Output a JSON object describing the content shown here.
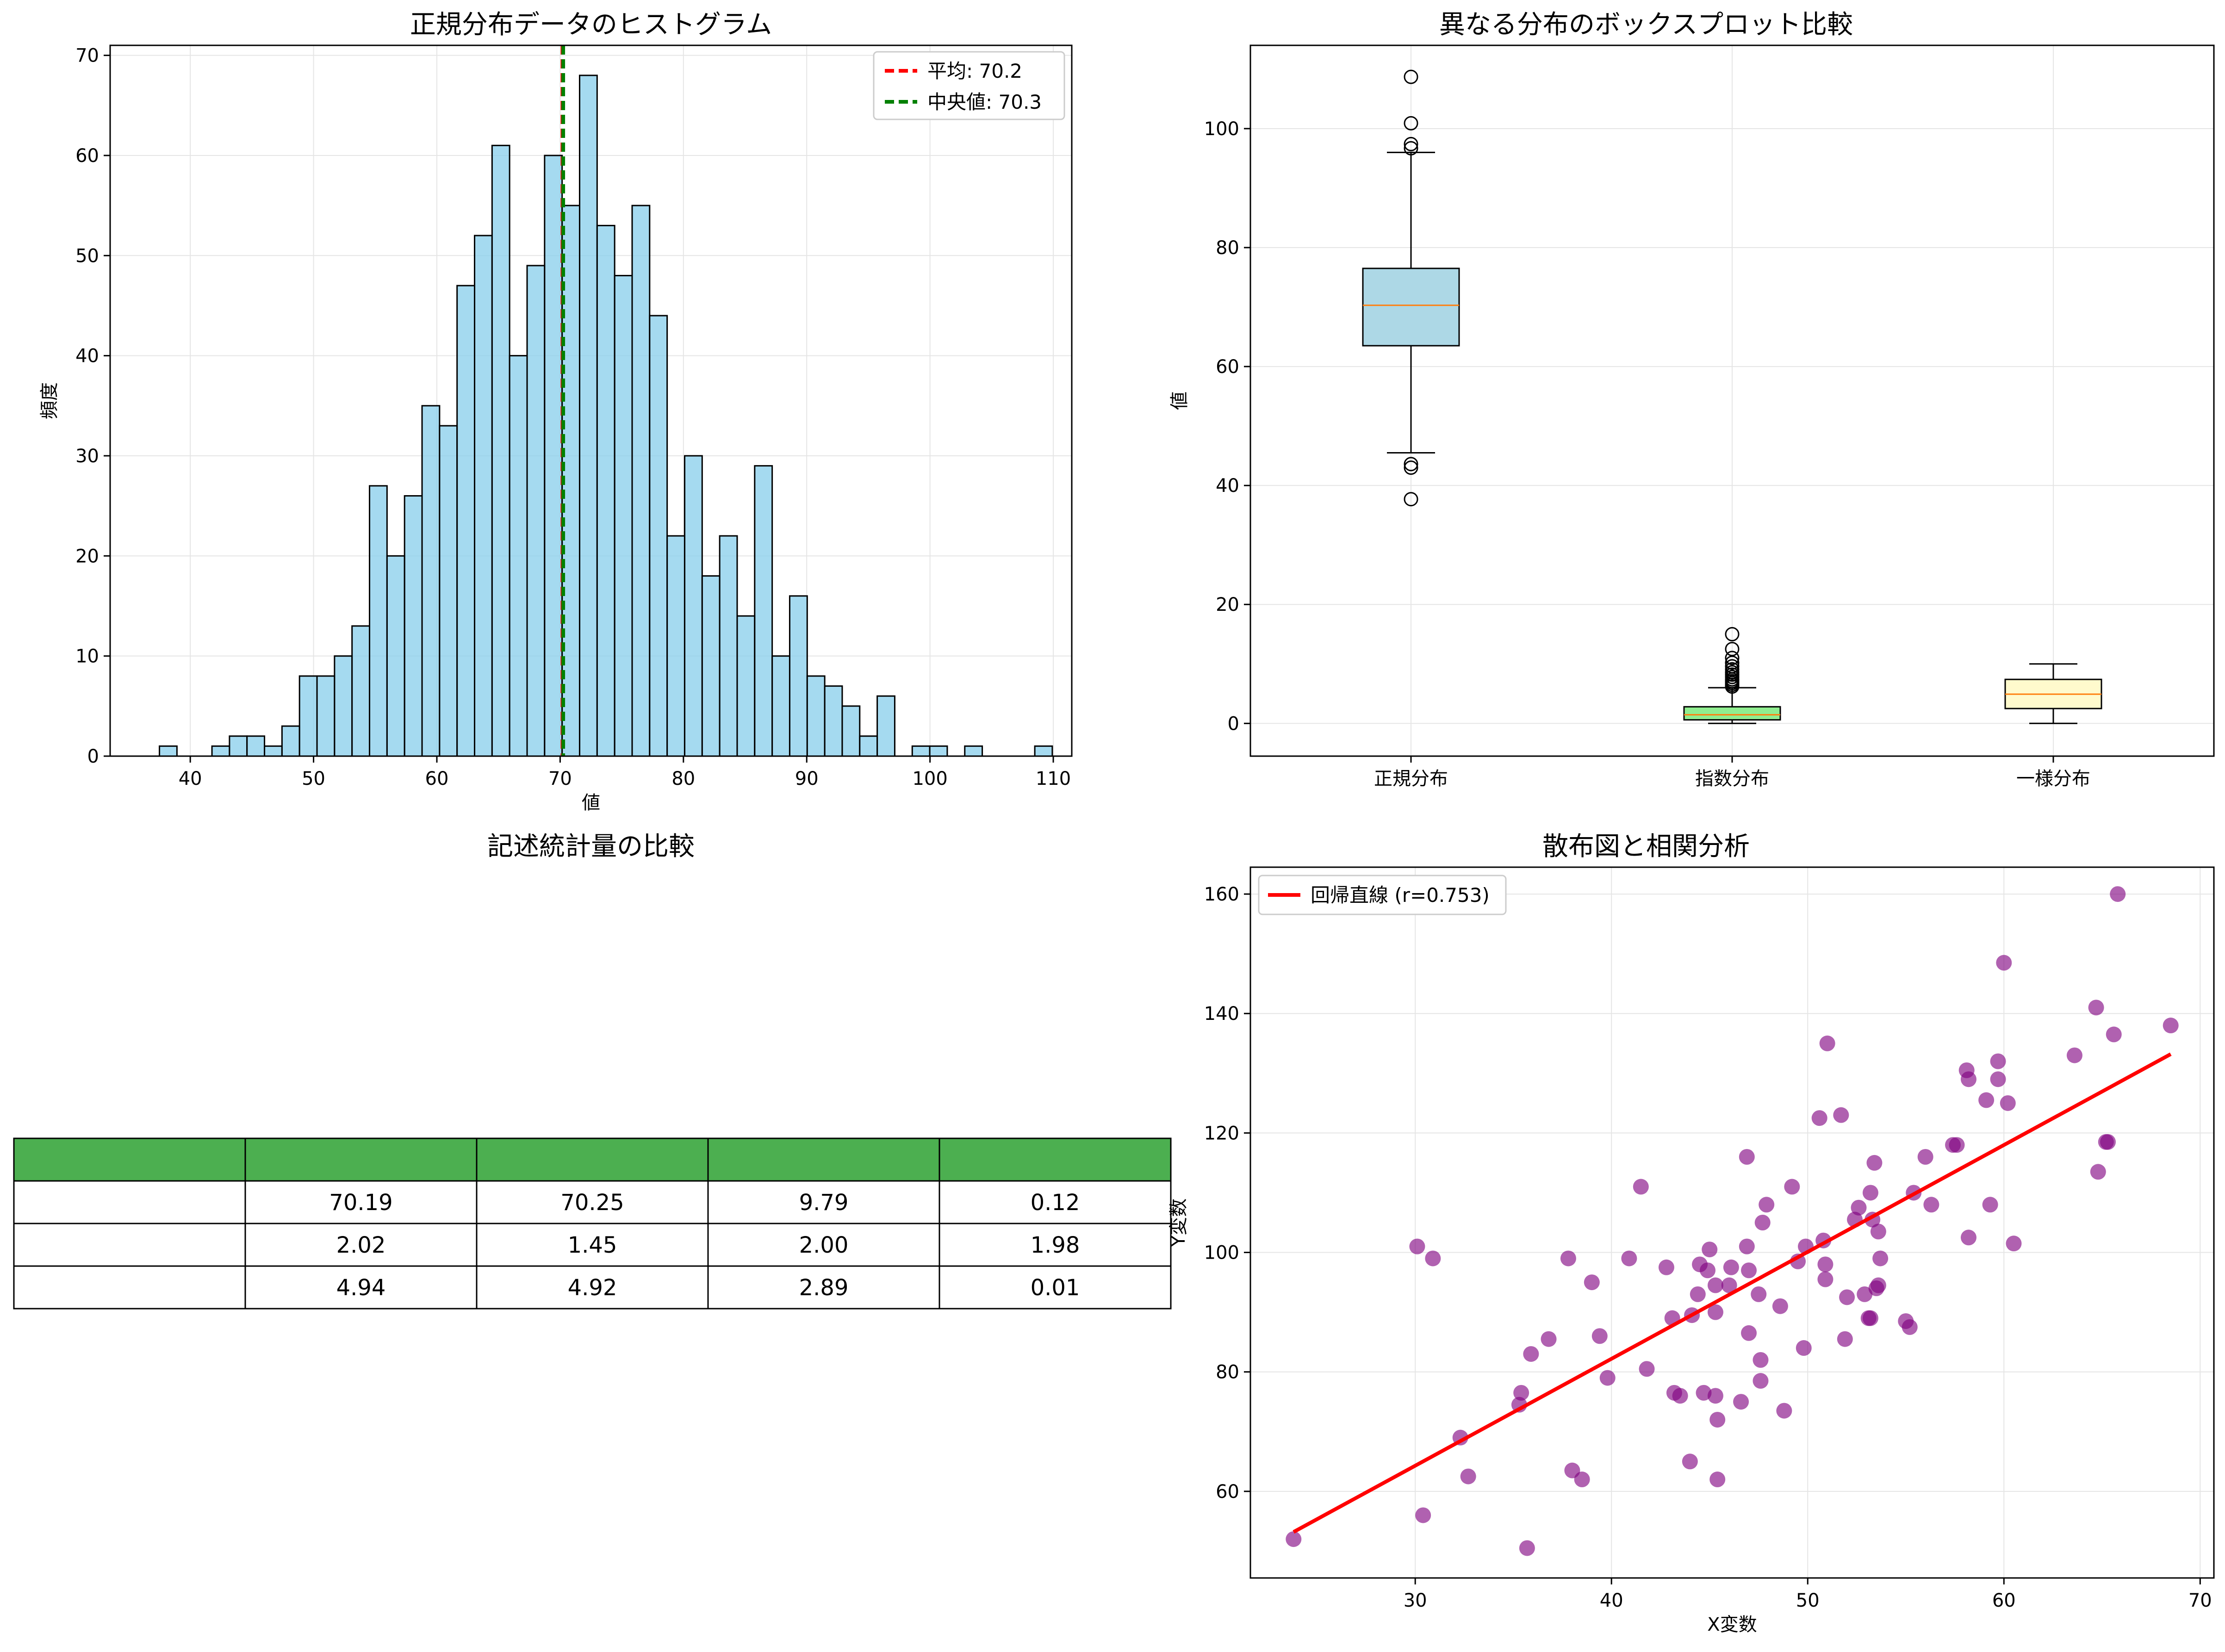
{
  "charts": [
    {
      "id": "hist",
      "title": "正規分布データのヒストグラム",
      "xlabel": "値",
      "ylabel": "頻度",
      "chart_data": {
        "type": "bar",
        "bin_start": 37.5,
        "bin_width": 1.42,
        "counts": [
          1,
          0,
          0,
          1,
          2,
          2,
          1,
          3,
          8,
          8,
          10,
          13,
          27,
          20,
          26,
          35,
          33,
          47,
          52,
          61,
          40,
          49,
          60,
          55,
          68,
          53,
          48,
          55,
          44,
          22,
          30,
          18,
          22,
          14,
          29,
          10,
          16,
          8,
          7,
          5,
          2,
          6,
          0,
          1,
          1,
          0,
          1,
          0,
          0,
          0,
          1
        ],
        "xlim": [
          33.5,
          111.5
        ],
        "ylim": [
          0,
          71
        ],
        "xticks": [
          40,
          50,
          60,
          70,
          80,
          90,
          100,
          110
        ],
        "yticks": [
          0,
          10,
          20,
          30,
          40,
          50,
          60,
          70
        ],
        "lines": [
          {
            "label": "平均: 70.2",
            "x": 70.19,
            "color": "#ff0000"
          },
          {
            "label": "中央値: 70.3",
            "x": 70.25,
            "color": "#008000"
          }
        ],
        "bar_color": "#87CEEB",
        "grid": true,
        "legend": "top-right"
      }
    },
    {
      "id": "box",
      "title": "異なる分布のボックスプロット比較",
      "xlabel": "",
      "ylabel": "値",
      "chart_data": {
        "type": "box",
        "categories": [
          "正規分布",
          "指数分布",
          "一様分布"
        ],
        "boxes": [
          {
            "q1": 63.5,
            "median": 70.3,
            "q3": 76.5,
            "whislo": 45.5,
            "whishi": 96.0,
            "fliers": [
              37.7,
              43.0,
              43.6,
              96.7,
              97.4,
              100.9,
              108.7
            ],
            "color": "#ADD8E6"
          },
          {
            "q1": 0.6,
            "median": 1.45,
            "q3": 2.8,
            "whislo": 0.0,
            "whishi": 6.0,
            "fliers": [
              6.2,
              6.5,
              6.8,
              7.1,
              7.4,
              7.8,
              8.2,
              8.6,
              9.1,
              9.6,
              10.2,
              11.0,
              12.5,
              15.0
            ],
            "color": "#90EE90"
          },
          {
            "q1": 2.5,
            "median": 4.92,
            "q3": 7.4,
            "whislo": 0.0,
            "whishi": 10.0,
            "fliers": [],
            "color": "#FFFACD"
          }
        ],
        "ylim": [
          -5.5,
          114
        ],
        "yticks": [
          0,
          20,
          40,
          60,
          80,
          100
        ],
        "median_color": "#ff7f0e",
        "grid": true
      }
    },
    {
      "id": "table",
      "title": "記述統計量の比較",
      "chart_data": {
        "type": "table",
        "header": [
          "",
          "",
          "",
          "",
          ""
        ],
        "rows": [
          [
            "",
            "70.19",
            "70.25",
            "9.79",
            "0.12"
          ],
          [
            "",
            "2.02",
            "1.45",
            "2.00",
            "1.98"
          ],
          [
            "",
            "4.94",
            "4.92",
            "2.89",
            "0.01"
          ]
        ],
        "header_color": "#4CAF50"
      }
    },
    {
      "id": "scatter",
      "title": "散布図と相関分析",
      "xlabel": "X変数",
      "ylabel": "Y変数",
      "chart_data": {
        "type": "scatter",
        "points": [
          [
            23.8,
            52
          ],
          [
            30.1,
            101
          ],
          [
            30.4,
            56
          ],
          [
            30.9,
            99
          ],
          [
            32.3,
            69
          ],
          [
            32.7,
            62.5
          ],
          [
            35.3,
            74.5
          ],
          [
            35.4,
            76.5
          ],
          [
            35.7,
            50.5
          ],
          [
            35.9,
            83
          ],
          [
            36.8,
            85.5
          ],
          [
            37.8,
            99
          ],
          [
            38,
            63.5
          ],
          [
            38.5,
            62
          ],
          [
            39,
            95
          ],
          [
            39.4,
            86
          ],
          [
            39.8,
            79
          ],
          [
            40.9,
            99
          ],
          [
            41.5,
            111
          ],
          [
            41.8,
            80.5
          ],
          [
            42.8,
            97.5
          ],
          [
            43.1,
            89
          ],
          [
            43.2,
            76.5
          ],
          [
            43.5,
            76
          ],
          [
            44,
            65
          ],
          [
            44.1,
            89.5
          ],
          [
            44.4,
            93
          ],
          [
            44.5,
            98
          ],
          [
            44.7,
            76.5
          ],
          [
            44.9,
            97
          ],
          [
            45,
            100.5
          ],
          [
            45.3,
            76
          ],
          [
            45.3,
            94.5
          ],
          [
            45.3,
            90
          ],
          [
            45.4,
            72
          ],
          [
            45.4,
            62
          ],
          [
            46,
            94.5
          ],
          [
            46.1,
            97.5
          ],
          [
            46.6,
            75
          ],
          [
            46.9,
            101
          ],
          [
            46.9,
            116
          ],
          [
            47,
            97
          ],
          [
            47,
            86.5
          ],
          [
            47.5,
            93
          ],
          [
            47.6,
            78.5
          ],
          [
            47.6,
            82
          ],
          [
            47.7,
            105
          ],
          [
            47.9,
            108
          ],
          [
            48.6,
            91
          ],
          [
            48.8,
            73.5
          ],
          [
            49.2,
            111
          ],
          [
            49.5,
            98.5
          ],
          [
            49.8,
            84
          ],
          [
            49.9,
            101
          ],
          [
            50.6,
            122.5
          ],
          [
            50.8,
            102
          ],
          [
            50.9,
            95.5
          ],
          [
            50.9,
            98
          ],
          [
            51,
            135
          ],
          [
            51.7,
            123
          ],
          [
            51.9,
            85.5
          ],
          [
            52,
            92.5
          ],
          [
            52.4,
            105.5
          ],
          [
            52.6,
            107.5
          ],
          [
            52.9,
            93
          ],
          [
            53.1,
            89
          ],
          [
            53.2,
            89
          ],
          [
            53.2,
            110
          ],
          [
            53.3,
            105.5
          ],
          [
            53.4,
            115
          ],
          [
            53.5,
            94
          ],
          [
            53.6,
            94.5
          ],
          [
            53.6,
            103.5
          ],
          [
            53.7,
            99
          ],
          [
            55,
            88.5
          ],
          [
            55.2,
            87.5
          ],
          [
            55.4,
            110
          ],
          [
            56,
            116
          ],
          [
            56.3,
            108
          ],
          [
            57.4,
            118
          ],
          [
            57.6,
            118
          ],
          [
            58.1,
            130.5
          ],
          [
            58.2,
            102.5
          ],
          [
            58.2,
            129
          ],
          [
            59.1,
            125.5
          ],
          [
            59.3,
            108
          ],
          [
            59.7,
            132
          ],
          [
            59.7,
            129
          ],
          [
            60,
            148.5
          ],
          [
            60.2,
            125
          ],
          [
            60.5,
            101.5
          ],
          [
            63.6,
            133
          ],
          [
            64.7,
            141
          ],
          [
            64.8,
            113.5
          ],
          [
            65.2,
            118.5
          ],
          [
            65.3,
            118.5
          ],
          [
            65.6,
            136.5
          ],
          [
            65.8,
            160
          ],
          [
            68.5,
            138
          ]
        ],
        "regression": {
          "label": "回帰直線 (r=0.753)",
          "x": [
            23.8,
            68.5
          ],
          "y": [
            53.2,
            133.2
          ],
          "color": "#ff0000"
        },
        "point_color": "#800080",
        "xlim": [
          21.6,
          70.7
        ],
        "ylim": [
          45.5,
          164.5
        ],
        "xticks": [
          30,
          40,
          50,
          60,
          70
        ],
        "yticks": [
          60,
          80,
          100,
          120,
          140,
          160
        ],
        "grid": true,
        "legend": "top-left"
      }
    }
  ]
}
